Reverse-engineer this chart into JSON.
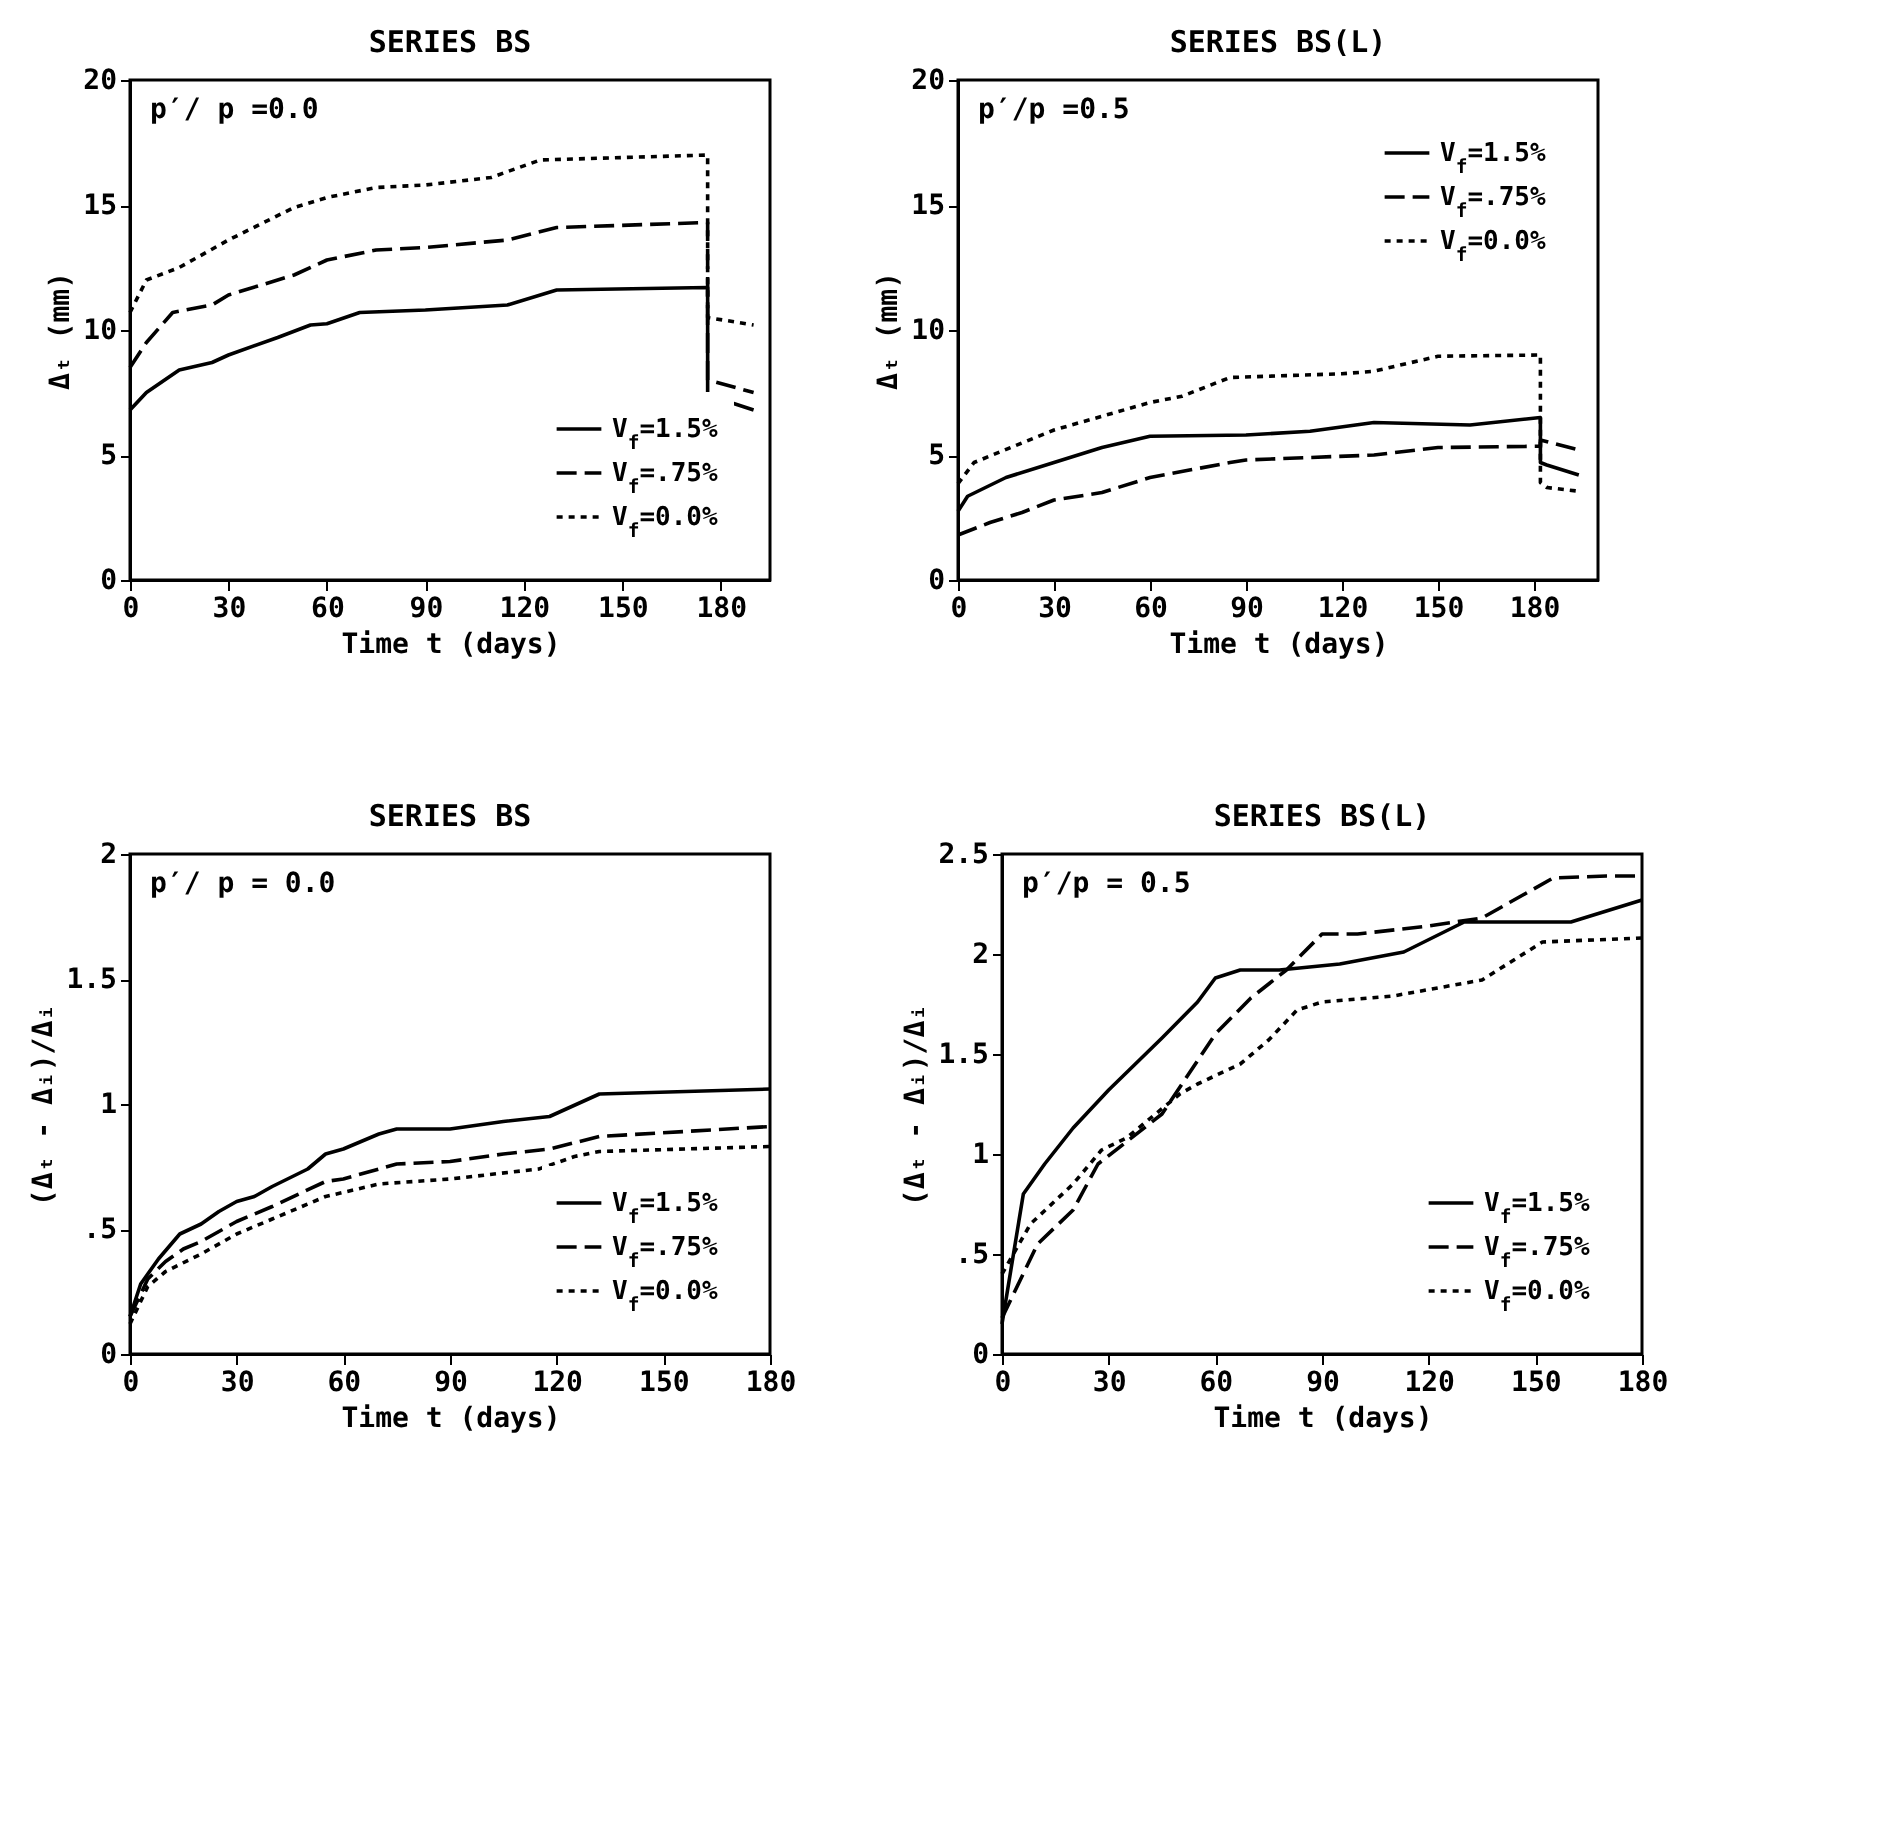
{
  "chart_data": [
    {
      "type": "line",
      "title": "SERIES BS",
      "xlabel": "Time t (days)",
      "ylabel": "Δₜ (mm)",
      "annotations": [
        "p′/ p =0.0"
      ],
      "xlim": [
        0,
        195
      ],
      "xticks": [
        0,
        30,
        60,
        90,
        120,
        150,
        180
      ],
      "ylim": [
        0,
        20
      ],
      "yticks": [
        0,
        5,
        10,
        15,
        20
      ],
      "legend": "bottom right",
      "grid": false,
      "series": [
        {
          "name": "V$_{f}$=1.5%",
          "color": "#000000",
          "line_style": "solid",
          "x": [
            0,
            5,
            15,
            25,
            30,
            45,
            55,
            60,
            70,
            90,
            115,
            130,
            176,
            176,
            190
          ],
          "values": [
            6.8,
            7.5,
            8.4,
            8.7,
            9.0,
            9.7,
            10.2,
            10.25,
            10.7,
            10.8,
            11.0,
            11.6,
            11.7,
            7.4,
            6.8
          ]
        },
        {
          "name": "V$_{f}$=.75%",
          "color": "#000000",
          "line_style": "dashed",
          "x": [
            0,
            5,
            13,
            25,
            30,
            50,
            60,
            75,
            90,
            115,
            130,
            176,
            176,
            190
          ],
          "values": [
            8.5,
            9.5,
            10.7,
            11.0,
            11.4,
            12.2,
            12.8,
            13.2,
            13.3,
            13.6,
            14.1,
            14.3,
            8.0,
            7.5
          ]
        },
        {
          "name": "V$_{f}$=0.0%",
          "color": "#000000",
          "line_style": "dotted",
          "x": [
            0,
            5,
            15,
            30,
            50,
            60,
            75,
            90,
            110,
            125,
            176,
            176,
            190
          ],
          "values": [
            10.7,
            12.0,
            12.5,
            13.6,
            14.9,
            15.3,
            15.7,
            15.8,
            16.1,
            16.8,
            17.0,
            10.5,
            10.2
          ]
        }
      ]
    },
    {
      "type": "line",
      "title": "SERIES BS(L)",
      "xlabel": "Time t (days)",
      "ylabel": "Δₜ (mm)",
      "annotations": [
        "p′/p =0.5"
      ],
      "xlim": [
        0,
        200
      ],
      "xticks": [
        0,
        30,
        60,
        90,
        120,
        150,
        180
      ],
      "ylim": [
        0,
        20
      ],
      "yticks": [
        0,
        5,
        10,
        15,
        20
      ],
      "legend": "top right",
      "grid": false,
      "series": [
        {
          "name": "V$_{f}$=1.5%",
          "color": "#000000",
          "line_style": "solid",
          "x": [
            0,
            3,
            15,
            30,
            45,
            60,
            90,
            110,
            130,
            160,
            182,
            182,
            184,
            194
          ],
          "values": [
            2.75,
            3.35,
            4.1,
            4.7,
            5.3,
            5.75,
            5.8,
            5.95,
            6.3,
            6.2,
            6.5,
            4.7,
            4.6,
            4.2
          ]
        },
        {
          "name": "V$_{f}$=.75%",
          "color": "#000000",
          "line_style": "dashed",
          "x": [
            0,
            10,
            20,
            30,
            45,
            60,
            85,
            90,
            130,
            150,
            182,
            182,
            194
          ],
          "values": [
            1.8,
            2.3,
            2.7,
            3.2,
            3.5,
            4.1,
            4.7,
            4.8,
            5.0,
            5.3,
            5.35,
            5.6,
            5.2
          ]
        },
        {
          "name": "V$_{f}$=0.0%",
          "color": "#000000",
          "line_style": "dotted",
          "x": [
            0,
            5,
            30,
            60,
            70,
            85,
            120,
            130,
            150,
            182,
            182,
            184,
            194
          ],
          "values": [
            3.85,
            4.7,
            6.0,
            7.1,
            7.35,
            8.1,
            8.25,
            8.35,
            8.95,
            9.0,
            3.9,
            3.7,
            3.55
          ]
        }
      ]
    },
    {
      "type": "line",
      "title": "SERIES BS",
      "xlabel": "Time t (days)",
      "ylabel": "(Δₜ - Δᵢ)/Δᵢ",
      "annotations": [
        "p′/ p = 0.0"
      ],
      "xlim": [
        0,
        180
      ],
      "xticks": [
        0,
        30,
        60,
        90,
        120,
        150,
        180
      ],
      "ylim": [
        0,
        2
      ],
      "yticks": [
        0,
        {
          "value": 0.5,
          "label": ".5"
        },
        1,
        1.5,
        2
      ],
      "legend": "bottom right",
      "grid": false,
      "series": [
        {
          "name": "V$_{f}$=1.5%",
          "color": "#000000",
          "line_style": "solid",
          "x": [
            0,
            3,
            8,
            14,
            20,
            25,
            30,
            35,
            40,
            50,
            55,
            60,
            70,
            75,
            90,
            105,
            118,
            132,
            180
          ],
          "values": [
            0.15,
            0.28,
            0.38,
            0.48,
            0.52,
            0.57,
            0.61,
            0.63,
            0.67,
            0.74,
            0.8,
            0.82,
            0.88,
            0.9,
            0.9,
            0.93,
            0.95,
            1.04,
            1.06
          ]
        },
        {
          "name": "V$_{f}$=.75%",
          "color": "#000000",
          "line_style": "dashed",
          "x": [
            0,
            5,
            10,
            15,
            20,
            30,
            40,
            55,
            60,
            75,
            90,
            105,
            118,
            132,
            180
          ],
          "values": [
            0.15,
            0.3,
            0.37,
            0.42,
            0.45,
            0.53,
            0.59,
            0.69,
            0.7,
            0.76,
            0.77,
            0.8,
            0.82,
            0.87,
            0.91
          ]
        },
        {
          "name": "V$_{f}$=0.0%",
          "color": "#000000",
          "line_style": "dotted",
          "x": [
            0,
            5,
            10,
            20,
            30,
            40,
            55,
            70,
            90,
            115,
            125,
            132,
            180
          ],
          "values": [
            0.12,
            0.27,
            0.33,
            0.4,
            0.48,
            0.54,
            0.63,
            0.68,
            0.7,
            0.74,
            0.79,
            0.81,
            0.83
          ]
        }
      ]
    },
    {
      "type": "line",
      "title": "SERIES BS(L)",
      "xlabel": "Time t (days)",
      "ylabel": "(Δₜ - Δᵢ)/Δᵢ",
      "annotations": [
        "p′/p = 0.5"
      ],
      "xlim": [
        0,
        180
      ],
      "xticks": [
        0,
        30,
        60,
        90,
        120,
        150,
        180
      ],
      "ylim": [
        0,
        2.5
      ],
      "yticks": [
        0,
        {
          "value": 0.5,
          "label": ".5"
        },
        1,
        1.5,
        2,
        2.5
      ],
      "legend": "bottom right",
      "grid": false,
      "series": [
        {
          "name": "V$_{f}$=1.5%",
          "color": "#000000",
          "line_style": "solid",
          "x": [
            0,
            6,
            12,
            20,
            30,
            45,
            55,
            60,
            67,
            78,
            95,
            113,
            130,
            160,
            180
          ],
          "values": [
            0.15,
            0.8,
            0.95,
            1.13,
            1.32,
            1.58,
            1.76,
            1.88,
            1.92,
            1.92,
            1.95,
            2.01,
            2.16,
            2.16,
            2.27
          ]
        },
        {
          "name": "V$_{f}$=.75%",
          "color": "#000000",
          "line_style": "dashed",
          "x": [
            0,
            10,
            20,
            27,
            45,
            60,
            70,
            80,
            90,
            100,
            120,
            135,
            155,
            170,
            180
          ],
          "values": [
            0.18,
            0.55,
            0.72,
            0.95,
            1.2,
            1.6,
            1.78,
            1.92,
            2.1,
            2.1,
            2.14,
            2.18,
            2.38,
            2.39,
            2.39
          ]
        },
        {
          "name": "V$_{f}$=0.0%",
          "color": "#000000",
          "line_style": "dotted",
          "x": [
            0,
            8,
            20,
            28,
            35,
            50,
            55,
            67,
            75,
            83,
            90,
            110,
            135,
            152,
            180
          ],
          "values": [
            0.4,
            0.65,
            0.85,
            1.02,
            1.08,
            1.3,
            1.35,
            1.45,
            1.57,
            1.72,
            1.76,
            1.79,
            1.87,
            2.06,
            2.08
          ]
        }
      ]
    }
  ]
}
